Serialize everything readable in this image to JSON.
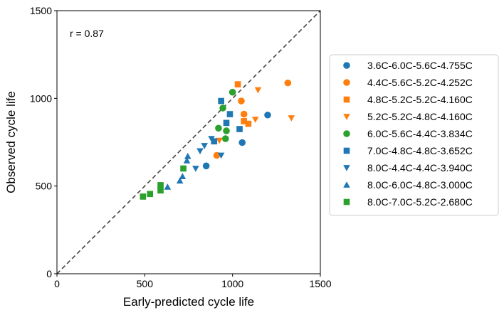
{
  "chart_data": {
    "type": "scatter",
    "xlabel": "Early-predicted cycle life",
    "ylabel": "Observed cycle life",
    "xlim": [
      0,
      1500
    ],
    "ylim": [
      0,
      1500
    ],
    "xticks": [
      "0",
      "500",
      "1000",
      "1500"
    ],
    "yticks": [
      "0",
      "500",
      "1000",
      "1500"
    ],
    "annotation": "r = 0.87",
    "reference_line": "y = x (dashed)",
    "grid": false,
    "legend_placement": "outside-right",
    "series": [
      {
        "name": "3.6C-6.0C-5.6C-4.755C",
        "color": "#1f77b4",
        "marker": "circle",
        "points": [
          [
            1055,
            748
          ],
          [
            1200,
            905
          ],
          [
            850,
            615
          ]
        ]
      },
      {
        "name": "4.4C-5.6C-5.2C-4.252C",
        "color": "#ff7f0e",
        "marker": "circle",
        "points": [
          [
            1315,
            1088
          ],
          [
            1050,
            985
          ],
          [
            1065,
            910
          ],
          [
            910,
            675
          ]
        ]
      },
      {
        "name": "4.8C-5.2C-5.2C-4.160C",
        "color": "#ff7f0e",
        "marker": "square",
        "points": [
          [
            1030,
            1080
          ],
          [
            1065,
            870
          ],
          [
            1090,
            855
          ]
        ]
      },
      {
        "name": "5.2C-5.2C-4.8C-4.160C",
        "color": "#ff7f0e",
        "marker": "triangle-down",
        "points": [
          [
            1145,
            1048
          ],
          [
            1335,
            888
          ],
          [
            1130,
            880
          ],
          [
            925,
            760
          ]
        ]
      },
      {
        "name": "6.0C-5.6C-4.4C-3.834C",
        "color": "#2ca02c",
        "marker": "circle",
        "points": [
          [
            1000,
            1035
          ],
          [
            945,
            945
          ],
          [
            920,
            830
          ],
          [
            965,
            815
          ],
          [
            960,
            770
          ]
        ]
      },
      {
        "name": "7.0C-4.8C-4.8C-3.652C",
        "color": "#1f77b4",
        "marker": "square",
        "points": [
          [
            935,
            985
          ],
          [
            985,
            910
          ],
          [
            965,
            860
          ],
          [
            1040,
            825
          ],
          [
            895,
            755
          ]
        ]
      },
      {
        "name": "8.0C-4.4C-4.4C-3.940C",
        "color": "#1f77b4",
        "marker": "triangle-down",
        "points": [
          [
            880,
            770
          ],
          [
            840,
            730
          ],
          [
            815,
            700
          ],
          [
            790,
            600
          ],
          [
            935,
            675
          ]
        ]
      },
      {
        "name": "8.0C-6.0C-4.8C-3.000C",
        "color": "#1f77b4",
        "marker": "triangle-up",
        "points": [
          [
            745,
            670
          ],
          [
            740,
            645
          ],
          [
            700,
            530
          ],
          [
            630,
            495
          ],
          [
            715,
            555
          ]
        ]
      },
      {
        "name": "8.0C-7.0C-5.2C-2.680C",
        "color": "#2ca02c",
        "marker": "square",
        "points": [
          [
            720,
            600
          ],
          [
            590,
            505
          ],
          [
            590,
            475
          ],
          [
            530,
            455
          ],
          [
            490,
            440
          ]
        ]
      }
    ]
  }
}
